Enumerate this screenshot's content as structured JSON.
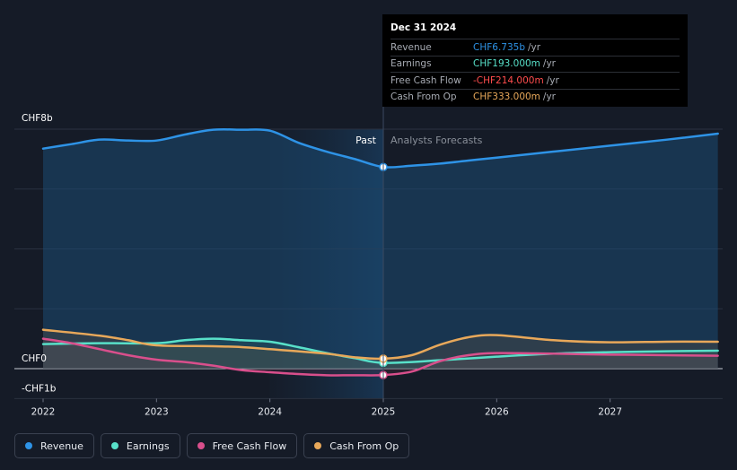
{
  "chart_data": {
    "type": "area",
    "y_unit_labels": {
      "top": "CHF8b",
      "zero": "CHF0",
      "bottom": "-CHF1b"
    },
    "ylim": [
      -1,
      8
    ],
    "xlim": [
      2022,
      2027.95
    ],
    "x_ticks": [
      2022,
      2023,
      2024,
      2025,
      2026,
      2027
    ],
    "x_tick_labels": [
      "2022",
      "2023",
      "2024",
      "2025",
      "2026",
      "2027"
    ],
    "divider_x": 2025,
    "past_label": "Past",
    "forecast_label": "Analysts Forecasts",
    "series": [
      {
        "name": "Revenue",
        "color": "#2e93e6",
        "x": [
          2022,
          2022.25,
          2022.5,
          2022.75,
          2023,
          2023.25,
          2023.5,
          2023.75,
          2024,
          2024.25,
          2024.5,
          2024.75,
          2025,
          2025.25,
          2025.5,
          2025.75,
          2026,
          2026.5,
          2027,
          2027.5,
          2027.95
        ],
        "values": [
          7.35,
          7.5,
          7.65,
          7.62,
          7.62,
          7.82,
          7.98,
          7.98,
          7.95,
          7.55,
          7.25,
          7.0,
          6.735,
          6.78,
          6.85,
          6.95,
          7.05,
          7.25,
          7.45,
          7.65,
          7.85
        ]
      },
      {
        "name": "Earnings",
        "color": "#58e0c9",
        "x": [
          2022,
          2022.5,
          2023,
          2023.25,
          2023.5,
          2023.75,
          2024,
          2024.25,
          2024.5,
          2024.75,
          2025,
          2025.5,
          2026,
          2026.5,
          2027,
          2027.5,
          2027.95
        ],
        "values": [
          0.82,
          0.85,
          0.85,
          0.95,
          1.0,
          0.95,
          0.9,
          0.72,
          0.52,
          0.35,
          0.193,
          0.28,
          0.4,
          0.5,
          0.55,
          0.58,
          0.6
        ]
      },
      {
        "name": "Free Cash Flow",
        "color": "#d94f8c",
        "x": [
          2022,
          2022.25,
          2022.5,
          2022.75,
          2023,
          2023.25,
          2023.5,
          2023.75,
          2024,
          2024.25,
          2024.5,
          2024.75,
          2025,
          2025.25,
          2025.5,
          2025.75,
          2026,
          2026.5,
          2027,
          2027.5,
          2027.95
        ],
        "values": [
          1.0,
          0.85,
          0.65,
          0.45,
          0.3,
          0.22,
          0.1,
          -0.05,
          -0.12,
          -0.18,
          -0.22,
          -0.22,
          -0.214,
          -0.1,
          0.25,
          0.45,
          0.52,
          0.5,
          0.47,
          0.45,
          0.43
        ]
      },
      {
        "name": "Cash From Op",
        "color": "#e8a85a",
        "x": [
          2022,
          2022.5,
          2022.75,
          2023,
          2023.5,
          2023.75,
          2024,
          2024.5,
          2024.75,
          2025,
          2025.25,
          2025.5,
          2025.75,
          2026,
          2026.5,
          2027,
          2027.5,
          2027.95
        ],
        "values": [
          1.3,
          1.1,
          0.95,
          0.78,
          0.75,
          0.72,
          0.65,
          0.5,
          0.38,
          0.333,
          0.45,
          0.8,
          1.05,
          1.12,
          0.95,
          0.88,
          0.9,
          0.9
        ]
      }
    ]
  },
  "tooltip": {
    "date": "Dec 31 2024",
    "unit": "/yr",
    "rows": [
      {
        "label": "Revenue",
        "value": "CHF6.735b",
        "color": "#2e93e6"
      },
      {
        "label": "Earnings",
        "value": "CHF193.000m",
        "color": "#58e0c9"
      },
      {
        "label": "Free Cash Flow",
        "value": "-CHF214.000m",
        "color": "#ff4d4d"
      },
      {
        "label": "Cash From Op",
        "value": "CHF333.000m",
        "color": "#e8a85a"
      }
    ]
  },
  "legend": [
    {
      "label": "Revenue",
      "color": "#2e93e6"
    },
    {
      "label": "Earnings",
      "color": "#58e0c9"
    },
    {
      "label": "Free Cash Flow",
      "color": "#d94f8c"
    },
    {
      "label": "Cash From Op",
      "color": "#e8a85a"
    }
  ]
}
